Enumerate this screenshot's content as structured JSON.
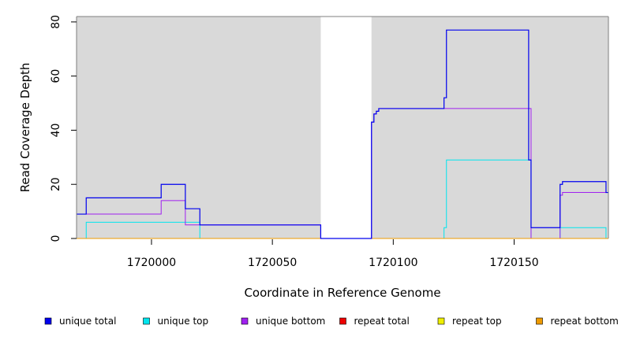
{
  "chart_data": {
    "type": "line",
    "xlabel": "Coordinate in Reference Genome",
    "ylabel": "Read Coverage Depth",
    "xlim": [
      1719969,
      1720189
    ],
    "ylim": [
      0,
      82
    ],
    "x_ticks": [
      1720000,
      1720050,
      1720100,
      1720150
    ],
    "y_ticks": [
      0,
      20,
      40,
      60,
      80
    ],
    "background_color": "#d9d9d9",
    "blank_region": [
      1720070,
      1720091
    ],
    "step": true,
    "series": [
      {
        "name": "unique total",
        "color": "#0000ee",
        "points": [
          [
            1719969,
            9
          ],
          [
            1719973,
            15
          ],
          [
            1720004,
            20
          ],
          [
            1720014,
            11
          ],
          [
            1720020,
            5
          ],
          [
            1720070,
            0
          ],
          [
            1720091,
            43
          ],
          [
            1720092,
            46
          ],
          [
            1720093,
            47
          ],
          [
            1720094,
            48
          ],
          [
            1720121,
            52
          ],
          [
            1720122,
            77
          ],
          [
            1720156,
            29
          ],
          [
            1720157,
            4
          ],
          [
            1720169,
            20
          ],
          [
            1720170,
            21
          ],
          [
            1720188,
            17
          ],
          [
            1720189,
            17
          ]
        ]
      },
      {
        "name": "unique top",
        "color": "#00e5ee",
        "points": [
          [
            1719969,
            0
          ],
          [
            1719973,
            6
          ],
          [
            1720020,
            0
          ],
          [
            1720121,
            4
          ],
          [
            1720122,
            29
          ],
          [
            1720157,
            0
          ],
          [
            1720169,
            4
          ],
          [
            1720188,
            0
          ],
          [
            1720189,
            0
          ]
        ]
      },
      {
        "name": "unique bottom",
        "color": "#a020f0",
        "points": [
          [
            1719969,
            9
          ],
          [
            1720004,
            14
          ],
          [
            1720014,
            5
          ],
          [
            1720070,
            0
          ],
          [
            1720091,
            43
          ],
          [
            1720092,
            46
          ],
          [
            1720093,
            47
          ],
          [
            1720094,
            48
          ],
          [
            1720157,
            0
          ],
          [
            1720169,
            16
          ],
          [
            1720170,
            17
          ],
          [
            1720189,
            17
          ]
        ]
      },
      {
        "name": "repeat total",
        "color": "#ee0000",
        "points": [
          [
            1719969,
            0
          ],
          [
            1720189,
            0
          ]
        ]
      },
      {
        "name": "repeat top",
        "color": "#eeee00",
        "points": [
          [
            1719969,
            0
          ],
          [
            1720189,
            0
          ]
        ]
      },
      {
        "name": "repeat bottom",
        "color": "#ee9a00",
        "points": [
          [
            1719969,
            0
          ],
          [
            1720189,
            0
          ]
        ]
      }
    ],
    "draw_order": [
      "unique top",
      "unique bottom",
      "repeat total",
      "repeat top",
      "repeat bottom",
      "unique total"
    ],
    "legend": {
      "placement": "bottom",
      "entries": [
        {
          "label": "unique total",
          "color": "#0000ee"
        },
        {
          "label": "unique top",
          "color": "#00e5ee"
        },
        {
          "label": "unique bottom",
          "color": "#a020f0"
        },
        {
          "label": "repeat total",
          "color": "#ee0000"
        },
        {
          "label": "repeat top",
          "color": "#eeee00"
        },
        {
          "label": "repeat bottom",
          "color": "#ee9a00"
        }
      ]
    }
  }
}
